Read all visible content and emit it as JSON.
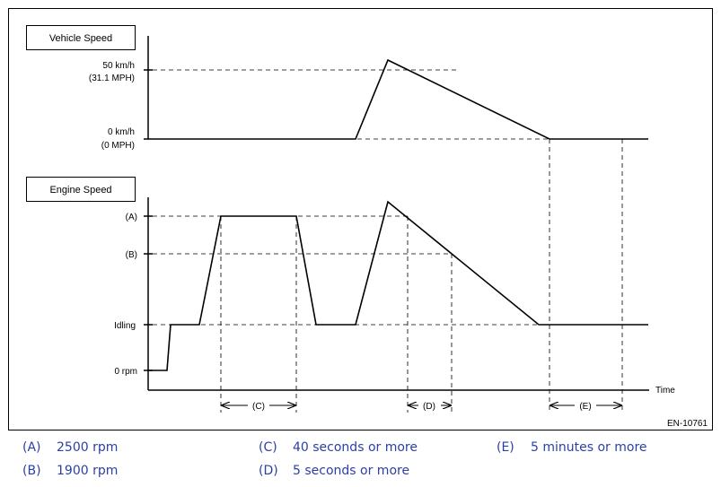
{
  "diagram": {
    "vehicle_speed_label": "Vehicle Speed",
    "engine_speed_label": "Engine Speed",
    "vehicle_ticks": {
      "top_l1": "50 km/h",
      "top_l2": "(31.1 MPH)",
      "zero_l1": "0 km/h",
      "zero_l2": "(0 MPH)"
    },
    "engine_ticks": {
      "a": "(A)",
      "b": "(B)",
      "idling": "Idling",
      "zero": "0 rpm"
    },
    "x_axis_label": "Time",
    "intervals": {
      "c": "(C)",
      "d": "(D)",
      "e": "(E)"
    },
    "figure_code": "EN-10761"
  },
  "legend": [
    {
      "key": "(A)",
      "text": "2500 rpm"
    },
    {
      "key": "(B)",
      "text": "1900 rpm"
    },
    {
      "key": "(C)",
      "text": "40 seconds or more"
    },
    {
      "key": "(D)",
      "text": "5 seconds or more"
    },
    {
      "key": "(E)",
      "text": "5 minutes or more"
    }
  ],
  "colors": {
    "line": "#000000",
    "legend_text": "#2b3fa8"
  }
}
